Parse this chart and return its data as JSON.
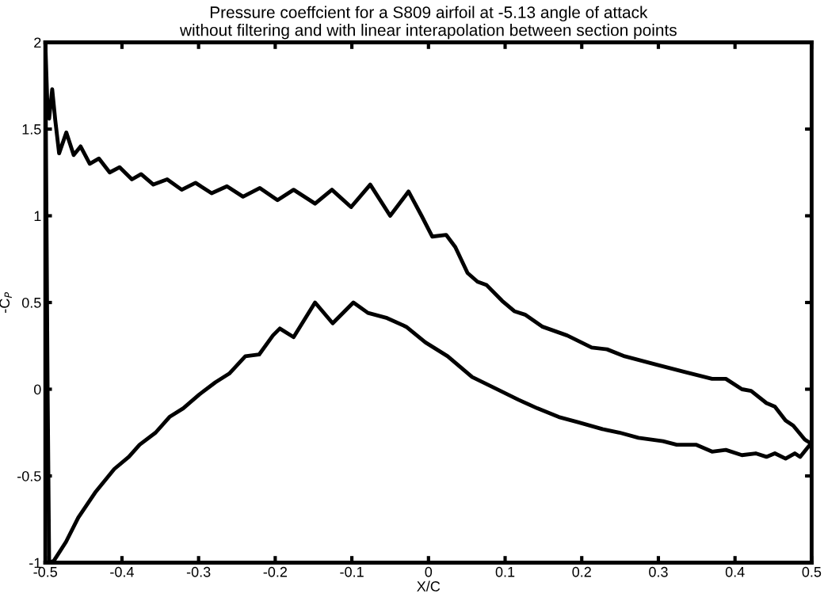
{
  "chart_data": {
    "type": "line",
    "title": "Pressure coeffcient for a S809 airfoil at -5.13 angle of attack\nwithout filtering and with linear interapolation between section points",
    "xlabel": "X/C",
    "ylabel": "-C$_{P}$",
    "xlim": [
      -0.5,
      0.5
    ],
    "xticks": [
      -0.5,
      -0.4,
      -0.3,
      -0.2,
      -0.1,
      0,
      0.1,
      0.2,
      0.3,
      0.4,
      0.5
    ],
    "ylim": [
      -1,
      2
    ],
    "yticks": [
      -1,
      -0.5,
      0,
      0.5,
      1,
      1.5,
      2
    ],
    "grid": false,
    "legend": false,
    "marker": "none",
    "line_style": "solid",
    "series": [
      {
        "color": "#000000",
        "x": [
          -0.5,
          -0.497,
          -0.495,
          -0.491,
          -0.487,
          -0.482,
          -0.4726,
          -0.463,
          -0.454,
          -0.442,
          -0.43,
          -0.416,
          -0.403,
          -0.387,
          -0.375,
          -0.359,
          -0.341,
          -0.322,
          -0.304,
          -0.283,
          -0.263,
          -0.242,
          -0.22,
          -0.197,
          -0.176,
          -0.148,
          -0.126,
          -0.101,
          -0.076,
          -0.05,
          -0.026,
          -0.009,
          0.005,
          0.023,
          0.035,
          0.051,
          0.064,
          0.076,
          0.096,
          0.112,
          0.126,
          0.149,
          0.181,
          0.213,
          0.233,
          0.256,
          0.299,
          0.334,
          0.37,
          0.388,
          0.409,
          0.421,
          0.441,
          0.452,
          0.466,
          0.476,
          0.491,
          0.498
        ],
        "values": [
          2.0,
          1.6,
          1.56,
          1.73,
          1.55,
          1.36,
          1.48,
          1.35,
          1.4,
          1.3,
          1.33,
          1.25,
          1.28,
          1.21,
          1.24,
          1.18,
          1.21,
          1.15,
          1.19,
          1.13,
          1.17,
          1.11,
          1.16,
          1.09,
          1.15,
          1.07,
          1.15,
          1.05,
          1.18,
          1.0,
          1.14,
          1.0,
          0.88,
          0.89,
          0.82,
          0.67,
          0.62,
          0.6,
          0.51,
          0.45,
          0.43,
          0.36,
          0.31,
          0.24,
          0.23,
          0.19,
          0.14,
          0.1,
          0.06,
          0.06,
          0.0,
          -0.01,
          -0.08,
          -0.1,
          -0.18,
          -0.21,
          -0.29,
          -0.31
        ]
      },
      {
        "color": "#000000",
        "x": [
          -0.5,
          -0.497,
          -0.495,
          -0.489,
          -0.473,
          -0.457,
          -0.434,
          -0.41,
          -0.391,
          -0.377,
          -0.356,
          -0.338,
          -0.32,
          -0.299,
          -0.278,
          -0.26,
          -0.239,
          -0.221,
          -0.203,
          -0.194,
          -0.176,
          -0.148,
          -0.125,
          -0.098,
          -0.079,
          -0.054,
          -0.029,
          -0.004,
          0.025,
          0.057,
          0.085,
          0.117,
          0.142,
          0.17,
          0.195,
          0.227,
          0.249,
          0.274,
          0.306,
          0.324,
          0.349,
          0.37,
          0.388,
          0.409,
          0.427,
          0.441,
          0.452,
          0.466,
          0.478,
          0.485,
          0.496,
          0.5
        ],
        "values": [
          2.0,
          0.0,
          -1.0,
          -0.99,
          -0.88,
          -0.74,
          -0.59,
          -0.46,
          -0.39,
          -0.32,
          -0.25,
          -0.16,
          -0.11,
          -0.03,
          0.04,
          0.09,
          0.19,
          0.2,
          0.31,
          0.35,
          0.3,
          0.5,
          0.38,
          0.5,
          0.44,
          0.41,
          0.36,
          0.27,
          0.19,
          0.07,
          0.01,
          -0.06,
          -0.11,
          -0.16,
          -0.19,
          -0.23,
          -0.25,
          -0.28,
          -0.3,
          -0.32,
          -0.32,
          -0.36,
          -0.35,
          -0.38,
          -0.37,
          -0.39,
          -0.37,
          -0.4,
          -0.37,
          -0.39,
          -0.33,
          -0.31
        ]
      }
    ]
  }
}
